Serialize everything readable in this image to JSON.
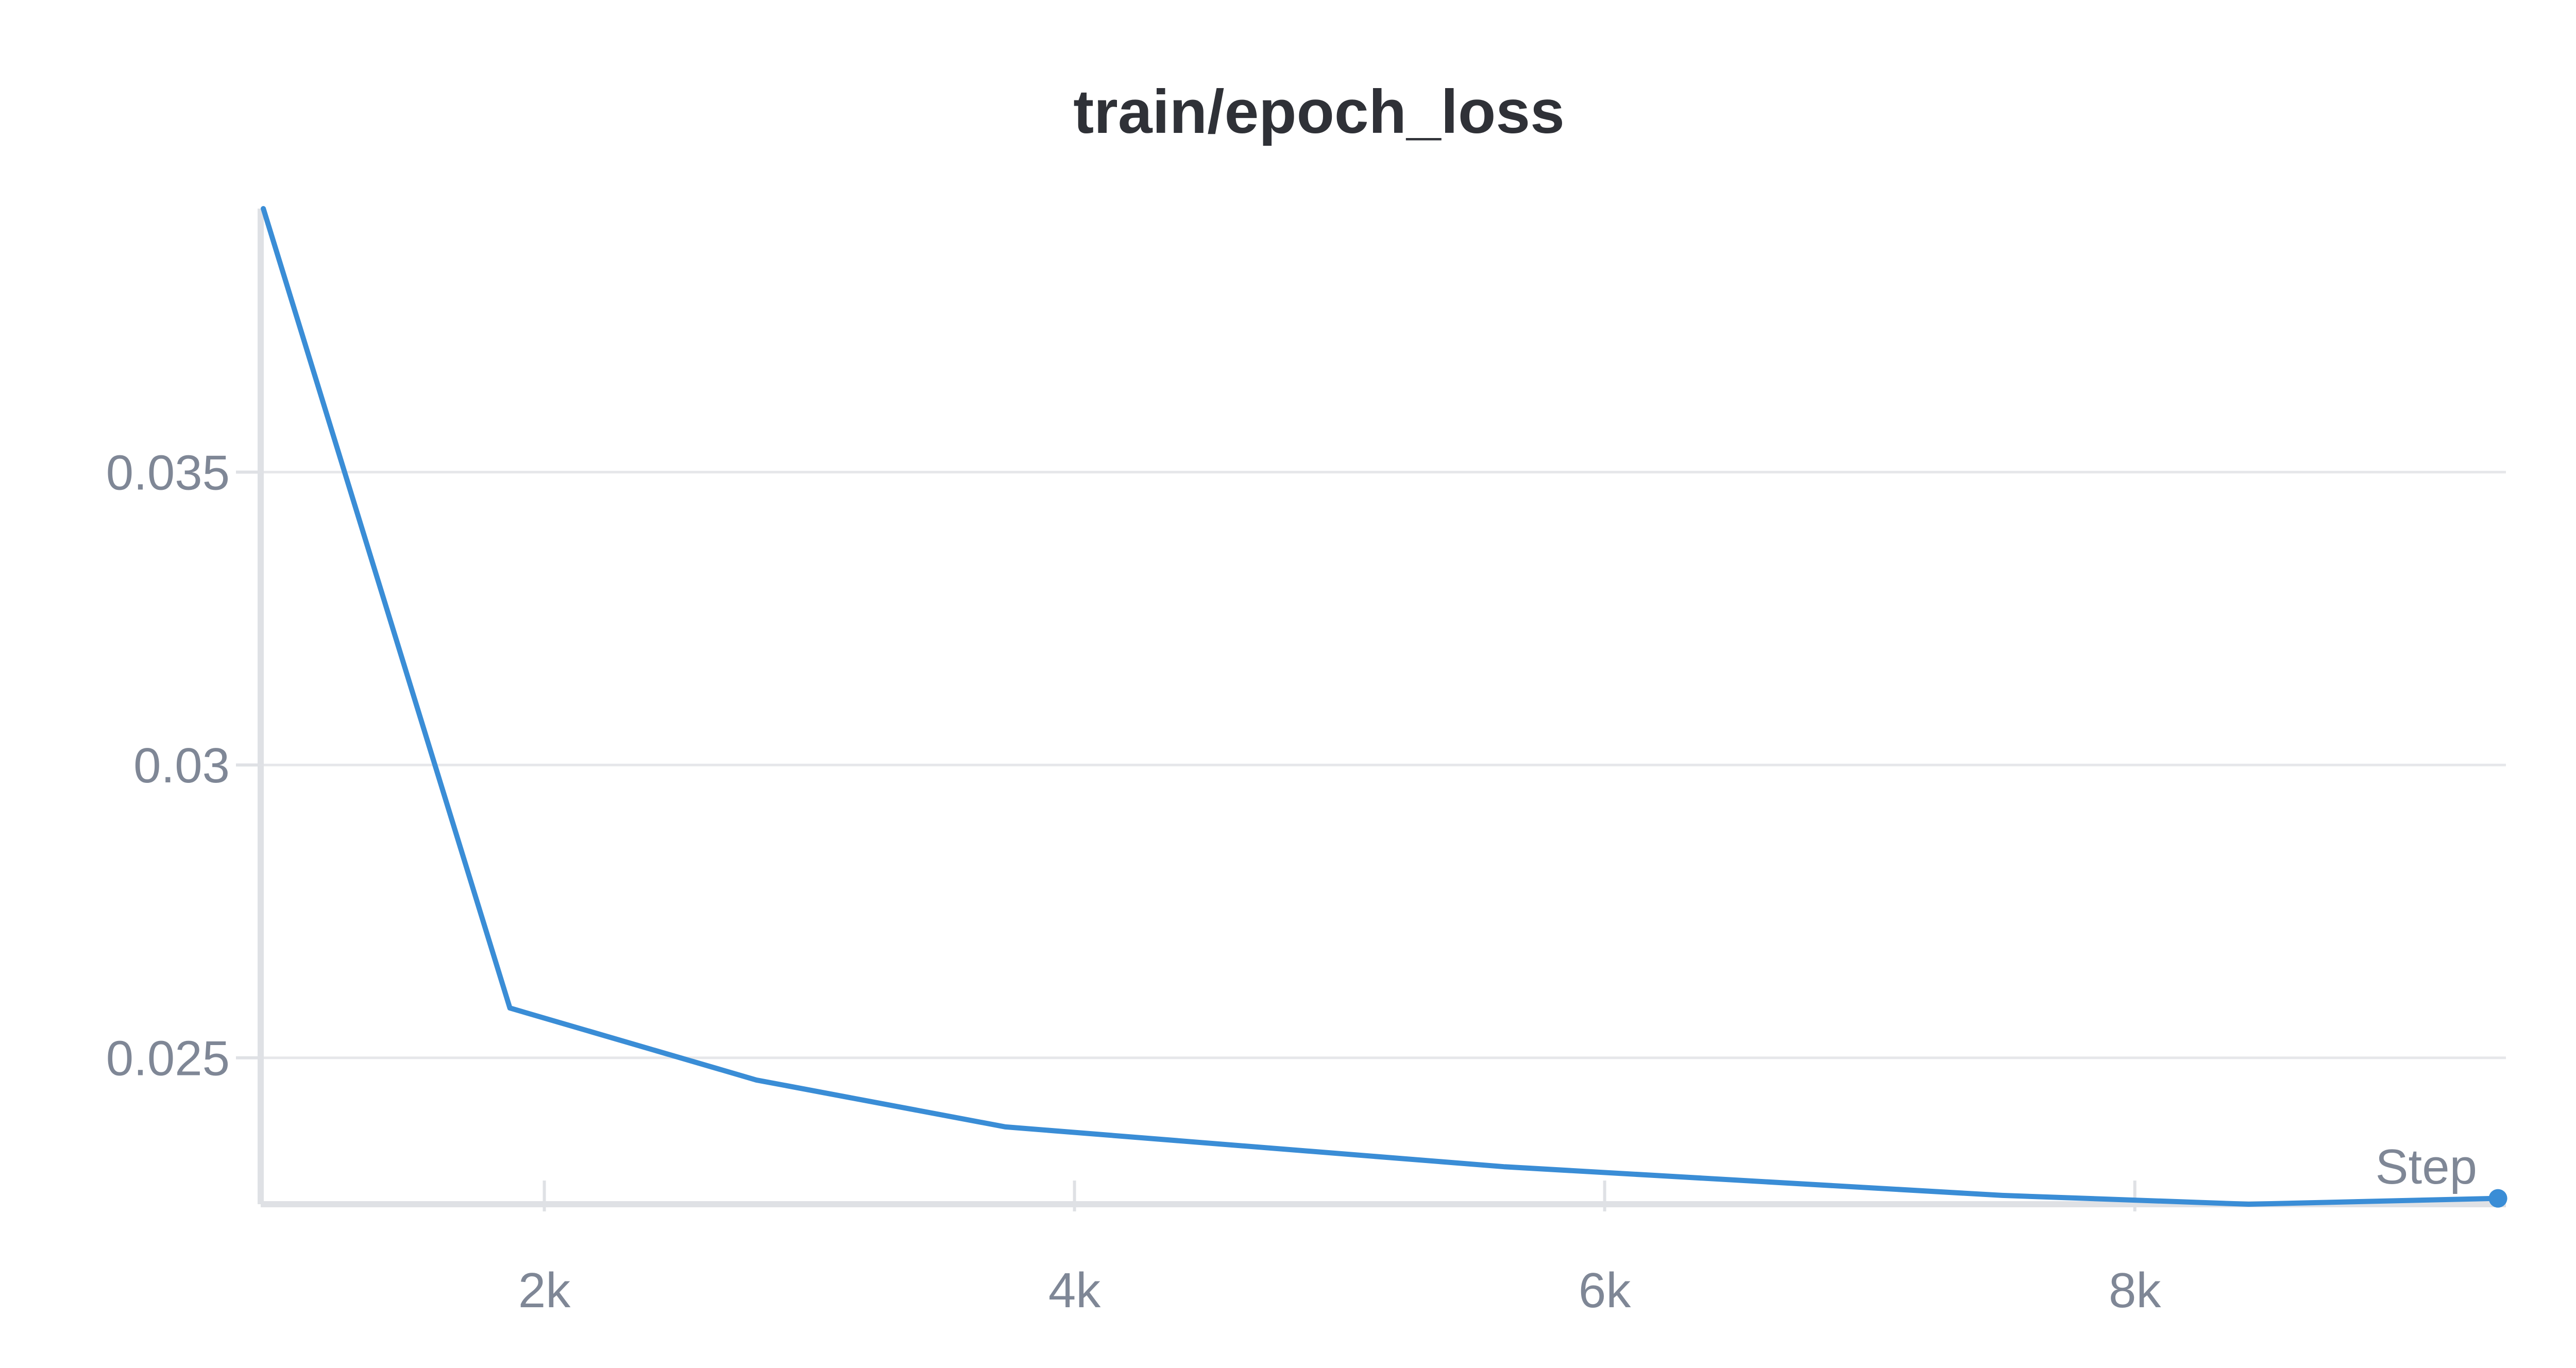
{
  "chart_data": {
    "type": "line",
    "title": "train/epoch_loss",
    "xlabel": "Step",
    "ylabel": "",
    "xlim": [
      930,
      9400
    ],
    "ylim": [
      0.0225,
      0.0395
    ],
    "x_ticks": [
      2000,
      4000,
      6000,
      8000
    ],
    "x_tick_labels": [
      "2k",
      "4k",
      "6k",
      "8k"
    ],
    "y_ticks": [
      0.025,
      0.03,
      0.035
    ],
    "y_tick_labels": [
      "0.025",
      "0.03",
      "0.035"
    ],
    "grid": true,
    "legend": "none",
    "series": [
      {
        "color": "#3a8dd6",
        "x": [
          940,
          1870,
          2800,
          3740,
          5620,
          7500,
          8430,
          9370
        ],
        "y": [
          0.0395,
          0.02585,
          0.02462,
          0.02382,
          0.02314,
          0.02265,
          0.0225,
          0.0226
        ]
      }
    ]
  }
}
